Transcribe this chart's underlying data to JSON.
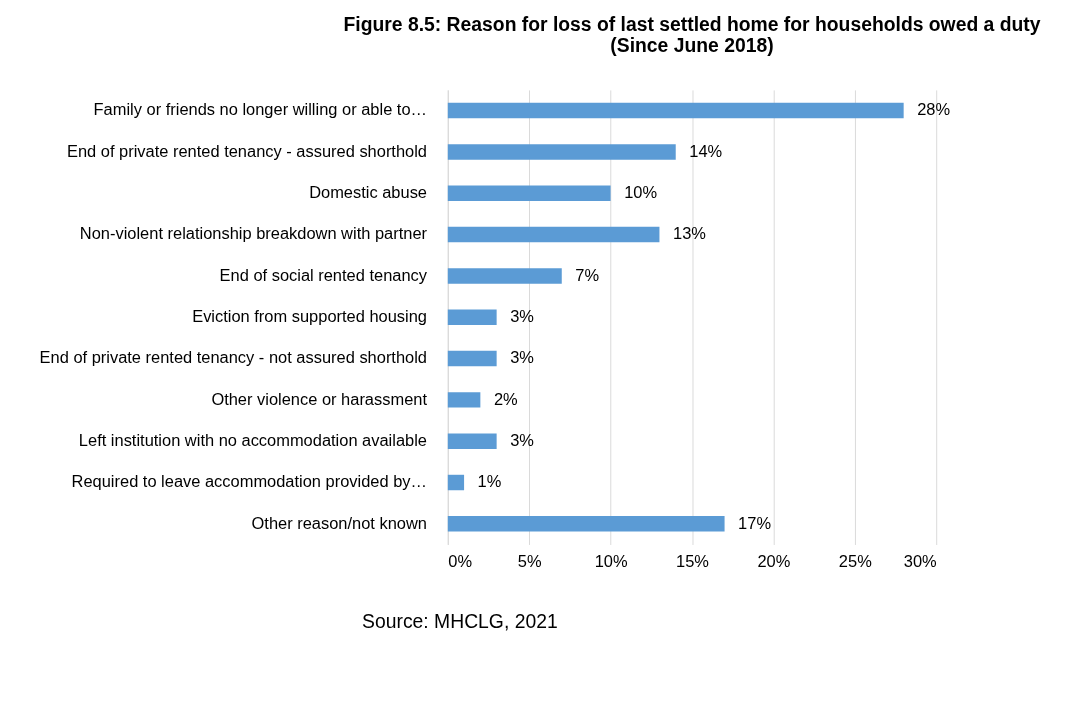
{
  "chart_data": {
    "type": "bar",
    "orientation": "horizontal",
    "title": "Figure 8.5: Reason for loss of last settled home for households owed a duty (Since June 2018)",
    "categories": [
      "Family or friends no longer willing or able to…",
      "End of private rented tenancy - assured shorthold",
      "Domestic abuse",
      "Non-violent relationship breakdown with partner",
      "End of social rented tenancy",
      "Eviction from supported housing",
      "End of private rented tenancy - not assured shorthold",
      "Other violence or harassment",
      "Left institution with no accommodation available",
      "Required to leave accommodation provided by…",
      "Other reason/not known"
    ],
    "values": [
      28,
      14,
      10,
      13,
      7,
      3,
      3,
      2,
      3,
      1,
      17
    ],
    "value_labels": [
      "28%",
      "14%",
      "10%",
      "13%",
      "7%",
      "3%",
      "3%",
      "2%",
      "3%",
      "1%",
      "17%"
    ],
    "color": "#5b9bd5",
    "xlim": [
      0,
      30
    ],
    "xticks": [
      {
        "value": 0,
        "label": "0%"
      },
      {
        "value": 5,
        "label": "5%"
      },
      {
        "value": 10,
        "label": "10%"
      },
      {
        "value": 15,
        "label": "15%"
      },
      {
        "value": 20,
        "label": "20%"
      },
      {
        "value": 25,
        "label": "25%"
      },
      {
        "value": 30,
        "label": "30%"
      }
    ],
    "grid": "x",
    "annotations": [
      "Source: MHCLG, 2021"
    ]
  }
}
